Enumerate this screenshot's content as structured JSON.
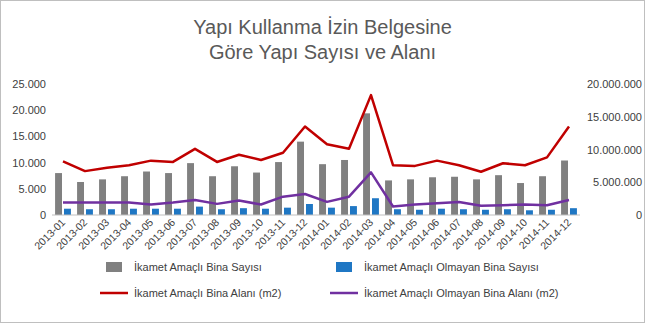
{
  "chart_data": {
    "type": "bar",
    "title": "Yapı Kullanma İzin Belgesine Göre Yapı Sayısı ve Alanı",
    "categories": [
      "2013-01",
      "2013-02",
      "2013-03",
      "2013-04",
      "2013-05",
      "2013-06",
      "2013-07",
      "2013-08",
      "2013-09",
      "2013-10",
      "2013-11",
      "2013-12",
      "2014-01",
      "2014-02",
      "2014-03",
      "2014-04",
      "2014-05",
      "2014-06",
      "2014-07",
      "2014-08",
      "2014-09",
      "2014-10",
      "2014-11",
      "2014-12"
    ],
    "series": [
      {
        "name": "İkamet Amaçlı Bina Sayısı",
        "type": "bar",
        "color": "#808080",
        "values": [
          8000,
          6300,
          6800,
          7400,
          8300,
          8000,
          9900,
          7400,
          9300,
          8100,
          10100,
          14000,
          9700,
          10500,
          19400,
          6600,
          6800,
          7200,
          7300,
          6800,
          7600,
          6100,
          7400,
          10400
        ]
      },
      {
        "name": "İkamet Amaçlı Olmayan Bina Sayısı",
        "type": "bar",
        "color": "#1f77c4",
        "values": [
          1200,
          1100,
          1100,
          1200,
          1200,
          1200,
          1600,
          1100,
          1300,
          1200,
          1400,
          2100,
          1400,
          1700,
          3200,
          1100,
          1000,
          1200,
          1100,
          1000,
          1100,
          900,
          1000,
          1300
        ]
      },
      {
        "name": "İkamet Amaçlı Bina Alanı (m2)",
        "type": "line",
        "axis": "y2",
        "color": "#c00000",
        "values": [
          8200000,
          6700000,
          7200000,
          7600000,
          8300000,
          8100000,
          10100000,
          8100000,
          9200000,
          8400000,
          9500000,
          13500000,
          10800000,
          10100000,
          18300000,
          7600000,
          7500000,
          8300000,
          7600000,
          6600000,
          7900000,
          7600000,
          8800000,
          13500000
        ]
      },
      {
        "name": "İkamet Amaçlı Olmayan Bina Alanı (m2)",
        "type": "line",
        "axis": "y2",
        "color": "#7030a0",
        "values": [
          1900000,
          1900000,
          1900000,
          1900000,
          1600000,
          1900000,
          2300000,
          1700000,
          2200000,
          1600000,
          2800000,
          3200000,
          2000000,
          2800000,
          6500000,
          1300000,
          1600000,
          1800000,
          2000000,
          1400000,
          1500000,
          1600000,
          1500000,
          2300000
        ]
      }
    ],
    "ylim": [
      0,
      25000
    ],
    "yticks": [
      0,
      {
        "value": 5000,
        "label": "5.000"
      },
      {
        "value": 10000,
        "label": "10.000"
      },
      {
        "value": 15000,
        "label": "15.000"
      },
      {
        "value": 20000,
        "label": "20.000"
      },
      {
        "value": 25000,
        "label": "25.000"
      }
    ],
    "y2lim": [
      0,
      20000000
    ],
    "y2ticks": [
      0,
      {
        "value": 5000000,
        "label": "5.000.000"
      },
      {
        "value": 10000000,
        "label": "10.000.000"
      },
      {
        "value": 15000000,
        "label": "15.000.000"
      },
      {
        "value": 20000000,
        "label": "20.000.000"
      }
    ],
    "grid": false,
    "legend": "bottom"
  }
}
